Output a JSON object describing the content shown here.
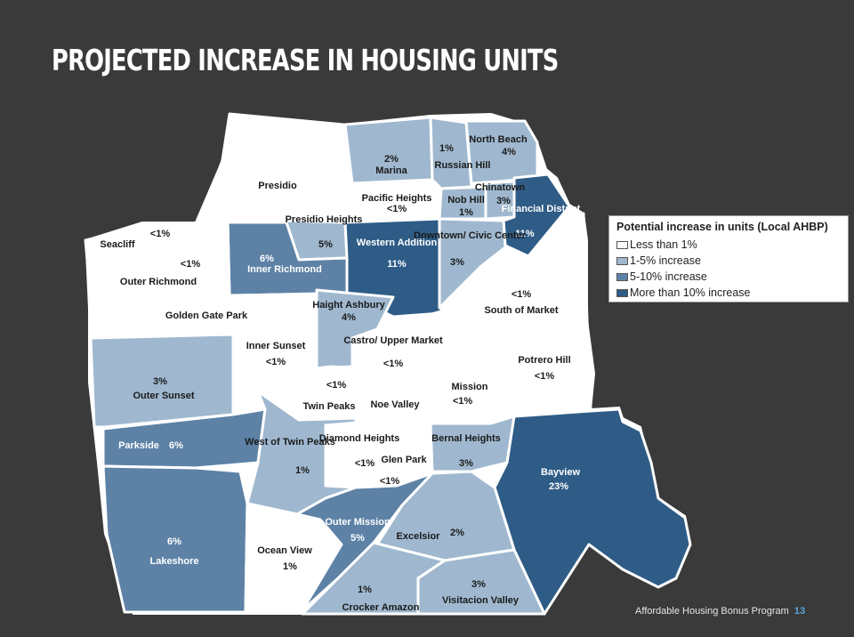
{
  "title": "Projected Increase in Housing Units",
  "colors": {
    "background": "#3a3a3a",
    "less_than_1": "#ffffff",
    "one_to_five": "#9fb8cf",
    "five_to_ten": "#5d82a6",
    "more_than_ten": "#2e5c86",
    "footer_page": "#5aa6d6"
  },
  "legend": {
    "title": "Potential increase in units (Local AHBP)",
    "items": [
      {
        "label": "Less than 1%",
        "category": "less_than_1"
      },
      {
        "label": "1-5% increase",
        "category": "one_to_five"
      },
      {
        "label": "5-10% increase",
        "category": "five_to_ten"
      },
      {
        "label": "More than 10% increase",
        "category": "more_than_ten"
      }
    ]
  },
  "neighborhoods": [
    {
      "name": "Presidio",
      "value": "",
      "category": "less_than_1"
    },
    {
      "name": "Marina",
      "value": "2%",
      "category": "one_to_five"
    },
    {
      "name": "Russian Hill",
      "value": "1%",
      "category": "one_to_five"
    },
    {
      "name": "North Beach",
      "value": "4%",
      "category": "one_to_five"
    },
    {
      "name": "Pacific Heights",
      "value": "<1%",
      "category": "less_than_1"
    },
    {
      "name": "Chinatown",
      "value": "3%",
      "category": "one_to_five"
    },
    {
      "name": "Nob Hill",
      "value": "1%",
      "category": "one_to_five"
    },
    {
      "name": "Financial District",
      "value": "11%",
      "category": "more_than_ten"
    },
    {
      "name": "Seacliff",
      "value": "<1%",
      "category": "less_than_1"
    },
    {
      "name": "Presidio Heights",
      "value": "5%",
      "category": "one_to_five"
    },
    {
      "name": "Inner Richmond",
      "value": "6%",
      "category": "five_to_ten"
    },
    {
      "name": "Western Addition",
      "value": "11%",
      "category": "more_than_ten"
    },
    {
      "name": "Downtown/ Civic Center",
      "value": "3%",
      "category": "one_to_five"
    },
    {
      "name": "Outer Richmond",
      "value": "<1%",
      "category": "less_than_1"
    },
    {
      "name": "South of Market",
      "value": "<1%",
      "category": "less_than_1"
    },
    {
      "name": "Golden Gate Park",
      "value": "",
      "category": "less_than_1"
    },
    {
      "name": "Haight Ashbury",
      "value": "4%",
      "category": "one_to_five"
    },
    {
      "name": "Castro/ Upper Market",
      "value": "<1%",
      "category": "less_than_1"
    },
    {
      "name": "Inner Sunset",
      "value": "<1%",
      "category": "less_than_1"
    },
    {
      "name": "Outer Sunset",
      "value": "3%",
      "category": "one_to_five"
    },
    {
      "name": "Potrero Hill",
      "value": "<1%",
      "category": "less_than_1"
    },
    {
      "name": "Twin Peaks",
      "value": "<1%",
      "category": "less_than_1"
    },
    {
      "name": "Noe Valley",
      "value": "",
      "category": "less_than_1"
    },
    {
      "name": "Mission",
      "value": "<1%",
      "category": "less_than_1"
    },
    {
      "name": "Parkside",
      "value": "6%",
      "category": "five_to_ten"
    },
    {
      "name": "West of Twin Peaks",
      "value": "1%",
      "category": "one_to_five"
    },
    {
      "name": "Diamond Heights",
      "value": "<1%",
      "category": "less_than_1"
    },
    {
      "name": "Glen Park",
      "value": "<1%",
      "category": "less_than_1"
    },
    {
      "name": "Bernal Heights",
      "value": "3%",
      "category": "one_to_five"
    },
    {
      "name": "Bayview",
      "value": "23%",
      "category": "more_than_ten"
    },
    {
      "name": "Lakeshore",
      "value": "6%",
      "category": "five_to_ten"
    },
    {
      "name": "Ocean View",
      "value": "1%",
      "category": "less_than_1"
    },
    {
      "name": "Outer Mission",
      "value": "5%",
      "category": "five_to_ten"
    },
    {
      "name": "Excelsior",
      "value": "2%",
      "category": "one_to_five"
    },
    {
      "name": "Crocker Amazon",
      "value": "1%",
      "category": "one_to_five"
    },
    {
      "name": "Visitacion Valley",
      "value": "3%",
      "category": "one_to_five"
    }
  ],
  "footer": {
    "program": "Affordable Housing Bonus Program",
    "page_number": "13"
  }
}
